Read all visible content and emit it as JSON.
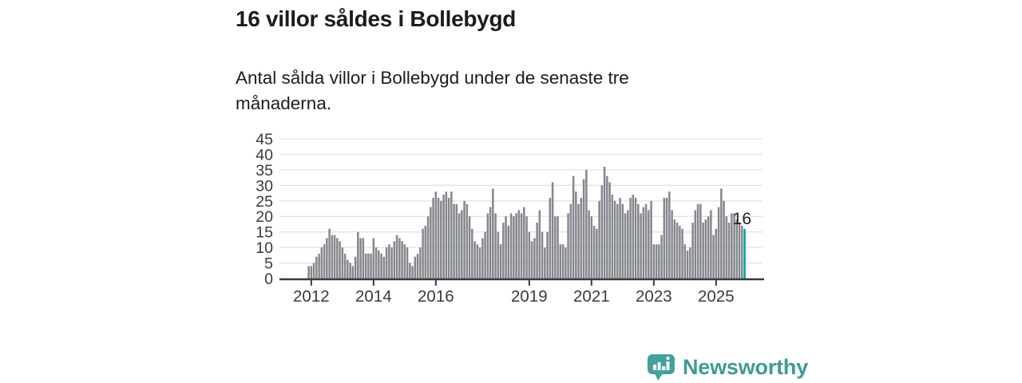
{
  "header": {
    "title": "16 villor såldes i Bollebygd",
    "subtitle": "Antal sålda villor i Bollebygd under de senaste tre månaderna."
  },
  "chart_data": {
    "type": "bar",
    "title": "16 villor såldes i Bollebygd",
    "xlabel": "",
    "ylabel": "",
    "x_start": "2011-12",
    "x_end": "2025-12",
    "x_frequency": "monthly",
    "values": [
      4,
      4,
      5,
      7,
      8,
      10,
      11,
      13,
      16,
      14,
      14,
      13,
      12,
      10,
      8,
      6,
      5,
      4,
      7,
      15,
      13,
      13,
      8,
      8,
      8,
      13,
      10,
      9,
      8,
      7,
      10,
      11,
      10,
      12,
      14,
      13,
      12,
      11,
      10,
      5,
      4,
      7,
      8,
      10,
      16,
      17,
      20,
      23,
      26,
      28,
      26,
      25,
      27,
      28,
      26,
      28,
      24,
      24,
      21,
      22,
      25,
      24,
      20,
      16,
      12,
      11,
      10,
      13,
      15,
      21,
      23,
      29,
      21,
      15,
      11,
      18,
      20,
      17,
      21,
      20,
      21,
      22,
      21,
      23,
      20,
      15,
      12,
      13,
      18,
      22,
      15,
      10,
      15,
      26,
      31,
      20,
      20,
      11,
      11,
      10,
      21,
      24,
      33,
      28,
      24,
      26,
      32,
      35,
      22,
      20,
      17,
      16,
      25,
      30,
      36,
      33,
      31,
      27,
      25,
      24,
      26,
      24,
      21,
      22,
      26,
      27,
      26,
      24,
      21,
      23,
      24,
      22,
      25,
      11,
      11,
      11,
      14,
      26,
      26,
      28,
      22,
      19,
      18,
      17,
      16,
      11,
      9,
      10,
      18,
      22,
      24,
      24,
      18,
      19,
      20,
      22,
      14,
      16,
      23,
      29,
      25,
      20,
      18,
      21,
      21,
      19,
      18,
      17,
      16
    ],
    "ylim": [
      0,
      45
    ],
    "yticks": [
      0,
      5,
      10,
      15,
      20,
      25,
      30,
      35,
      40,
      45
    ],
    "xticks": [
      "2012",
      "2014",
      "2016",
      "2019",
      "2021",
      "2023",
      "2025"
    ],
    "grid": true,
    "legend": "none",
    "bar_color": "#85878e",
    "highlight_last": true,
    "highlight_color": "#00a39b",
    "annotation": {
      "text": "16",
      "attached_to": "last-bar"
    },
    "axis_color": "#3a3a3c",
    "grid_color": "#e3e3e3",
    "tick_label_color": "#3a3a3a"
  },
  "footer": {
    "brand": "Newsworthy",
    "brand_color": "#3d9c94",
    "icon_color": "#43a19b"
  }
}
